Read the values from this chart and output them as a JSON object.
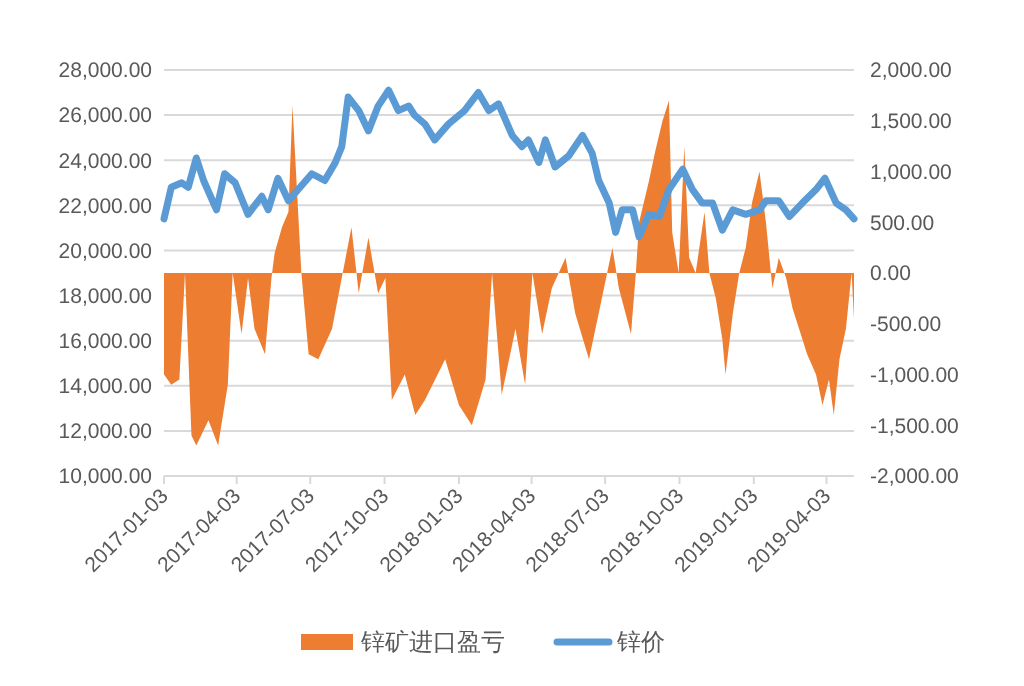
{
  "chart_data": {
    "type": "line",
    "xlim": [
      "2017-01-03",
      "2019-05-07"
    ],
    "xticks": [
      "2017-01-03",
      "2017-04-03",
      "2017-07-03",
      "2017-10-03",
      "2018-01-03",
      "2018-04-03",
      "2018-07-03",
      "2018-10-03",
      "2019-01-03",
      "2019-04-03"
    ],
    "ylim": [
      10000,
      28000
    ],
    "yticks": [
      {
        "value": 10000,
        "label": "10,000.00"
      },
      {
        "value": 12000,
        "label": "12,000.00"
      },
      {
        "value": 14000,
        "label": "14,000.00"
      },
      {
        "value": 16000,
        "label": "16,000.00"
      },
      {
        "value": 18000,
        "label": "18,000.00"
      },
      {
        "value": 20000,
        "label": "20,000.00"
      },
      {
        "value": 22000,
        "label": "22,000.00"
      },
      {
        "value": 24000,
        "label": "24,000.00"
      },
      {
        "value": 26000,
        "label": "26,000.00"
      },
      {
        "value": 28000,
        "label": "28,000.00"
      }
    ],
    "y2lim": [
      -2000,
      2000
    ],
    "y2ticks": [
      {
        "value": -2000,
        "label": "-2,000.00"
      },
      {
        "value": -1500,
        "label": "-1,500.00"
      },
      {
        "value": -1000,
        "label": "-1,000.00"
      },
      {
        "value": -500,
        "label": "-500.00"
      },
      {
        "value": 0,
        "label": "0.00"
      },
      {
        "value": 500,
        "label": "500.00"
      },
      {
        "value": 1000,
        "label": "1,000.00"
      },
      {
        "value": 1500,
        "label": "1,500.00"
      },
      {
        "value": 2000,
        "label": "2,000.00"
      }
    ],
    "grid": "y",
    "legend": "bottom",
    "series": [
      {
        "name": "锌矿进口盈亏",
        "type": "area",
        "axis": "y2",
        "color": "#ed7d31",
        "x": [
          "2017-01-03",
          "2017-01-12",
          "2017-01-22",
          "2017-01-29",
          "2017-02-06",
          "2017-02-12",
          "2017-02-27",
          "2017-03-11",
          "2017-03-23",
          "2017-03-29",
          "2017-04-09",
          "2017-04-17",
          "2017-04-25",
          "2017-05-08",
          "2017-05-16",
          "2017-05-20",
          "2017-05-29",
          "2017-06-06",
          "2017-06-11",
          "2017-06-18",
          "2017-06-22",
          "2017-07-01",
          "2017-07-13",
          "2017-07-30",
          "2017-08-11",
          "2017-08-23",
          "2017-09-01",
          "2017-09-13",
          "2017-09-25",
          "2017-10-04",
          "2017-10-12",
          "2017-10-28",
          "2017-11-10",
          "2017-11-22",
          "2017-12-17",
          "2018-01-03",
          "2018-01-19",
          "2018-02-05",
          "2018-02-13",
          "2018-02-25",
          "2018-03-14",
          "2018-03-26",
          "2018-04-04",
          "2018-04-16",
          "2018-04-28",
          "2018-05-15",
          "2018-05-27",
          "2018-06-13",
          "2018-06-25",
          "2018-07-12",
          "2018-07-20",
          "2018-08-04",
          "2018-08-10",
          "2018-08-14",
          "2018-08-26",
          "2018-09-03",
          "2018-09-12",
          "2018-09-20",
          "2018-09-24",
          "2018-10-02",
          "2018-10-09",
          "2018-10-15",
          "2018-10-23",
          "2018-11-03",
          "2018-11-09",
          "2018-11-17",
          "2018-11-25",
          "2018-11-29",
          "2018-12-08",
          "2018-12-16",
          "2018-12-24",
          "2019-01-01",
          "2019-01-10",
          "2019-01-18",
          "2019-01-26",
          "2019-02-03",
          "2019-02-12",
          "2019-02-20",
          "2019-02-28",
          "2019-03-10",
          "2019-03-21",
          "2019-03-29",
          "2019-04-06",
          "2019-04-12",
          "2019-04-19",
          "2019-04-27",
          "2019-05-04",
          "2019-05-07"
        ],
        "values": [
          -1000,
          -1100,
          -1050,
          0,
          -1600,
          -1700,
          -1450,
          -1700,
          -1100,
          0,
          -600,
          -50,
          -550,
          -800,
          -50,
          200,
          450,
          600,
          1650,
          600,
          0,
          -800,
          -850,
          -550,
          -50,
          450,
          -200,
          350,
          -200,
          -50,
          -1250,
          -1000,
          -1400,
          -1250,
          -850,
          -1300,
          -1500,
          -1050,
          0,
          -1200,
          -550,
          -1100,
          0,
          -600,
          -150,
          150,
          -400,
          -850,
          -400,
          250,
          -150,
          -600,
          0,
          500,
          900,
          1200,
          1500,
          1700,
          400,
          0,
          1250,
          150,
          0,
          600,
          0,
          -250,
          -650,
          -1000,
          -400,
          0,
          250,
          700,
          1000,
          500,
          -150,
          150,
          -50,
          -350,
          -550,
          -800,
          -1000,
          -1300,
          -1050,
          -1400,
          -850,
          -550,
          0,
          -450
        ]
      },
      {
        "name": "锌价",
        "color": "#5b9bd5",
        "x": [
          "2017-01-03",
          "2017-01-12",
          "2017-01-25",
          "2017-02-02",
          "2017-02-12",
          "2017-02-21",
          "2017-03-09",
          "2017-03-19",
          "2017-04-01",
          "2017-04-17",
          "2017-05-04",
          "2017-05-12",
          "2017-05-24",
          "2017-06-06",
          "2017-06-18",
          "2017-07-05",
          "2017-07-21",
          "2017-08-03",
          "2017-08-11",
          "2017-08-19",
          "2017-09-01",
          "2017-09-13",
          "2017-09-25",
          "2017-10-08",
          "2017-10-20",
          "2017-11-02",
          "2017-11-09",
          "2017-11-22",
          "2017-12-04",
          "2017-12-21",
          "2018-01-10",
          "2018-01-27",
          "2018-02-09",
          "2018-02-21",
          "2018-03-10",
          "2018-03-22",
          "2018-03-30",
          "2018-04-12",
          "2018-04-20",
          "2018-05-02",
          "2018-05-19",
          "2018-06-05",
          "2018-06-17",
          "2018-06-25",
          "2018-07-08",
          "2018-07-16",
          "2018-07-24",
          "2018-08-06",
          "2018-08-14",
          "2018-08-26",
          "2018-09-08",
          "2018-09-20",
          "2018-10-07",
          "2018-10-19",
          "2018-10-31",
          "2018-11-13",
          "2018-11-25",
          "2018-12-08",
          "2018-12-24",
          "2019-01-10",
          "2019-01-18",
          "2019-02-03",
          "2019-02-16",
          "2019-03-04",
          "2019-03-21",
          "2019-04-01",
          "2019-04-15",
          "2019-04-27",
          "2019-05-07"
        ],
        "values": [
          21400,
          22800,
          23000,
          22800,
          24100,
          23100,
          21800,
          23400,
          23000,
          21600,
          22400,
          21800,
          23200,
          22200,
          22700,
          23400,
          23100,
          23900,
          24600,
          26800,
          26200,
          25300,
          26400,
          27100,
          26200,
          26400,
          26000,
          25600,
          24900,
          25600,
          26200,
          27000,
          26200,
          26500,
          25100,
          24600,
          24900,
          23900,
          24900,
          23700,
          24200,
          25100,
          24300,
          23100,
          22100,
          20800,
          21800,
          21800,
          20600,
          21600,
          21500,
          22700,
          23600,
          22700,
          22100,
          22100,
          20900,
          21800,
          21600,
          21800,
          22200,
          22200,
          21500,
          22100,
          22700,
          23200,
          22100,
          21800,
          21400
        ]
      }
    ]
  }
}
